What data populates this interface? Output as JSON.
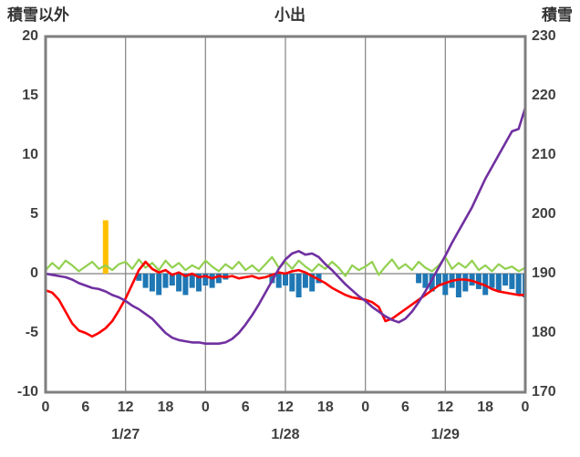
{
  "title": "小出",
  "left_axis": {
    "label": "積雪以外",
    "ticks": [
      20,
      15,
      10,
      5,
      0,
      -5,
      -10
    ],
    "min": -10,
    "max": 20
  },
  "right_axis": {
    "label": "積雪",
    "ticks": [
      230,
      220,
      210,
      200,
      190,
      180,
      170
    ],
    "min": 170,
    "max": 230
  },
  "x_axis": {
    "hour_ticks": [
      "0",
      "6",
      "12",
      "18",
      "0",
      "6",
      "12",
      "18",
      "0",
      "6",
      "12",
      "18",
      "0"
    ],
    "date_labels": [
      "1/27",
      "1/28",
      "1/29"
    ],
    "hours_total": 72,
    "gridline_every_hours": 12
  },
  "colors": {
    "frame": "#7f7f7f",
    "gridline": "#8c8c8c",
    "zero_line": "#808080",
    "purple": "#7030A0",
    "red": "#FF0000",
    "green": "#92D050",
    "blue": "#1F77B4",
    "yellow": "#FFC000",
    "text": "#3f3f3f"
  },
  "chart_data": {
    "type": "line+bar combo",
    "title": "小出",
    "x_mode": "hourly over 3 days (1/27 - 1/29), 73 points h=0..72",
    "left_ylim": [
      -10,
      20
    ],
    "right_ylim": [
      170,
      230
    ],
    "grid": "vertical every 12h, horizontal only at left-axis 0 (= right-axis 190)",
    "legend": "none visible",
    "series": [
      {
        "name": "yellow-bar-series",
        "kind": "bar",
        "axis": "left",
        "color": "#FFC000",
        "values": [
          0,
          0,
          0,
          0,
          0,
          0,
          0,
          0,
          0,
          4.5,
          0,
          0,
          0,
          0,
          0,
          0,
          0,
          0,
          0,
          0,
          0,
          0,
          0,
          0,
          0,
          0,
          0,
          0,
          0,
          0,
          0,
          0,
          0,
          0,
          0,
          0,
          0,
          0,
          0,
          0,
          0,
          0,
          0,
          0,
          0,
          0,
          0,
          0,
          0,
          0,
          0,
          0,
          0,
          0,
          0,
          0,
          0,
          0,
          0,
          0,
          0,
          0,
          0,
          0,
          0,
          0,
          0,
          0,
          0,
          0,
          0,
          0,
          0
        ]
      },
      {
        "name": "blue-bar-series",
        "kind": "bar",
        "axis": "left",
        "color": "#1F77B4",
        "values": [
          0,
          0,
          0,
          0,
          0,
          0,
          0,
          0,
          0,
          0,
          0,
          0,
          0,
          0,
          -0.6,
          -1.2,
          -1.5,
          -1.8,
          -1.2,
          -1.0,
          -1.5,
          -1.8,
          -1.2,
          -1.5,
          -1.0,
          -1.2,
          -0.8,
          -0.5,
          0,
          0,
          0,
          0,
          0,
          0,
          -0.8,
          -1.2,
          -1.0,
          -1.5,
          -2.0,
          -1.2,
          -1.5,
          -0.8,
          0,
          0,
          0,
          0,
          0,
          0,
          0,
          0,
          0,
          0,
          0,
          0,
          0,
          0,
          -0.8,
          -1.2,
          -1.5,
          -1.0,
          -1.8,
          -1.2,
          -2.0,
          -1.5,
          -1.0,
          -1.3,
          -1.8,
          -1.2,
          -1.5,
          -1.0,
          -1.3,
          -1.8,
          -2.0
        ]
      },
      {
        "name": "green-line-series",
        "kind": "line",
        "axis": "left",
        "color": "#92D050",
        "width": 2.2,
        "values": [
          0.3,
          0.9,
          0.4,
          1.1,
          0.7,
          0.2,
          0.6,
          1.0,
          0.4,
          0.7,
          0.3,
          0.8,
          1.0,
          0.4,
          1.2,
          0.5,
          0.9,
          0.3,
          1.1,
          0.5,
          0.9,
          0.3,
          0.7,
          0.4,
          1.1,
          0.6,
          0.2,
          0.8,
          0.4,
          1.0,
          0.3,
          0.7,
          0.2,
          0.8,
          1.4,
          0.5,
          1.0,
          0.4,
          1.1,
          0.6,
          0.2,
          0.8,
          0.4,
          1.0,
          0.5,
          -0.2,
          0.7,
          0.3,
          0.6,
          1.0,
          -0.1,
          0.6,
          1.2,
          0.4,
          0.8,
          0.3,
          1.0,
          0.5,
          0.2,
          0.7,
          1.4,
          0.4,
          0.9,
          0.5,
          1.1,
          0.3,
          0.7,
          0.2,
          0.8,
          0.4,
          0.6,
          0.2,
          0.5
        ]
      },
      {
        "name": "red-line-series",
        "kind": "line",
        "axis": "left",
        "color": "#FF0000",
        "width": 2.6,
        "values": [
          -1.4,
          -1.6,
          -2.2,
          -3.2,
          -4.2,
          -4.8,
          -5.0,
          -5.3,
          -5.0,
          -4.6,
          -4.0,
          -3.1,
          -2.1,
          -0.9,
          0.3,
          1.0,
          0.4,
          0.1,
          0.3,
          -0.1,
          0.1,
          -0.2,
          0.0,
          -0.3,
          -0.2,
          -0.4,
          -0.2,
          -0.3,
          -0.2,
          -0.4,
          -0.3,
          -0.2,
          -0.4,
          -0.3,
          -0.1,
          0.1,
          0.0,
          0.2,
          0.3,
          0.1,
          -0.2,
          -0.5,
          -0.8,
          -1.2,
          -1.5,
          -1.8,
          -2.0,
          -2.1,
          -2.2,
          -2.4,
          -2.8,
          -4.0,
          -3.8,
          -3.4,
          -3.0,
          -2.6,
          -2.2,
          -1.8,
          -1.4,
          -1.0,
          -0.8,
          -0.6,
          -0.5,
          -0.5,
          -0.6,
          -0.8,
          -1.0,
          -1.3,
          -1.5,
          -1.6,
          -1.7,
          -1.8,
          -1.8
        ]
      },
      {
        "name": "purple-line-series",
        "kind": "line",
        "axis": "right",
        "color": "#7030A0",
        "width": 2.6,
        "values": [
          190.0,
          189.8,
          189.6,
          189.4,
          189.0,
          188.4,
          188.0,
          187.6,
          187.4,
          187.0,
          186.4,
          186.0,
          185.4,
          184.6,
          184.0,
          183.2,
          182.4,
          181.2,
          180.0,
          179.2,
          178.8,
          178.6,
          178.4,
          178.4,
          178.2,
          178.2,
          178.2,
          178.4,
          179.0,
          180.0,
          181.4,
          183.0,
          184.8,
          186.8,
          188.8,
          190.8,
          192.4,
          193.4,
          193.8,
          193.2,
          193.4,
          192.8,
          191.6,
          190.6,
          189.4,
          188.2,
          187.2,
          186.2,
          185.4,
          184.4,
          183.6,
          182.8,
          182.2,
          181.8,
          182.4,
          183.6,
          185.2,
          187.0,
          189.0,
          191.0,
          193.0,
          195.2,
          197.2,
          199.2,
          201.2,
          203.6,
          206.0,
          208.0,
          210.0,
          212.0,
          214.0,
          214.4,
          218.0
        ]
      }
    ]
  }
}
